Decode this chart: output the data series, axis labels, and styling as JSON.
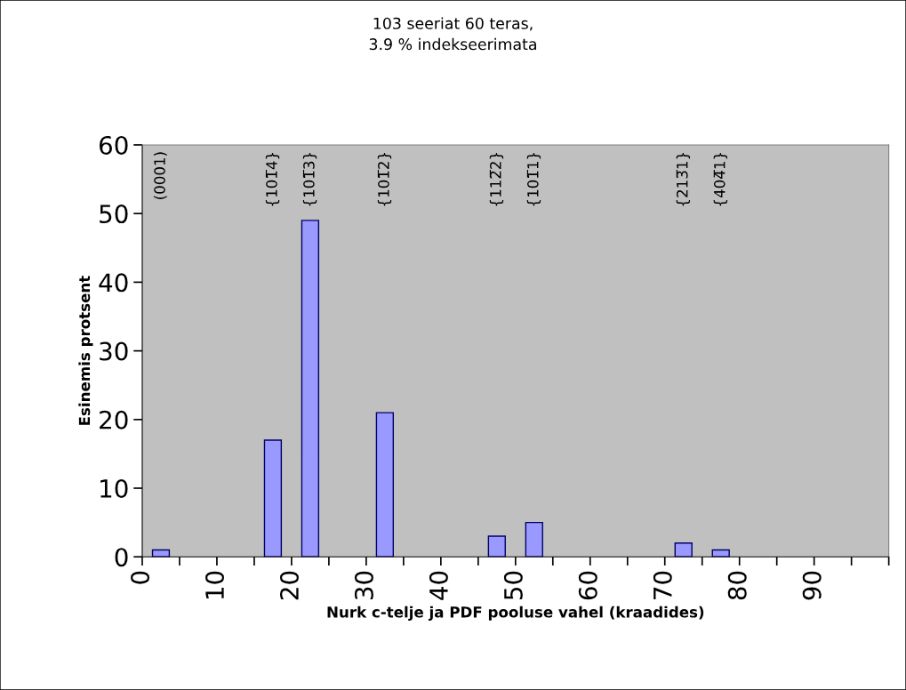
{
  "chart_data": {
    "type": "histogram",
    "title": "103 seeriat 60 teras,\n3.9 % indekseerimata",
    "xlabel": "Nurk c-telje ja PDF pooluse vahel (kraadides)",
    "ylabel": "Esinemis protsent",
    "bins": [
      0,
      5,
      10,
      15,
      20,
      25,
      30,
      35,
      40,
      45,
      50,
      55,
      60,
      65,
      70,
      75,
      80,
      85,
      90,
      95,
      100
    ],
    "values": [
      1,
      0,
      0,
      17,
      49,
      0,
      21,
      0,
      0,
      3,
      5,
      0,
      0,
      0,
      2,
      1,
      0,
      0,
      0,
      0
    ],
    "color": "#9999ff",
    "xlim": [
      0,
      100
    ],
    "xticks": [
      0,
      {
        "value": 5,
        "label": null
      },
      10,
      {
        "value": 15,
        "label": null
      },
      20,
      {
        "value": 25,
        "label": null
      },
      30,
      {
        "value": 35,
        "label": null
      },
      40,
      {
        "value": 45,
        "label": null
      },
      50,
      {
        "value": 55,
        "label": null
      },
      60,
      {
        "value": 65,
        "label": null
      },
      70,
      {
        "value": 75,
        "label": null
      },
      80,
      {
        "value": 85,
        "label": null
      },
      90,
      {
        "value": 95,
        "label": null
      },
      {
        "value": 100,
        "label": null
      }
    ],
    "ylim": [
      0,
      60
    ],
    "yticks": [
      0,
      10,
      20,
      30,
      40,
      50,
      60
    ],
    "grid": false,
    "annotations": [
      "(0001)",
      "{101̅4}",
      "{101̅3}",
      "{101̅2}",
      "{112̅2}",
      "{101̅1}",
      "{213̅1}",
      "{404̅1}"
    ]
  }
}
